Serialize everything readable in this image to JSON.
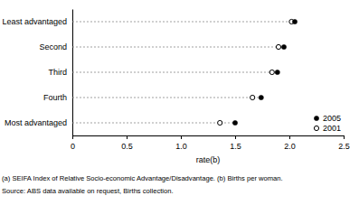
{
  "chart_data": {
    "type": "dot",
    "orientation": "horizontal",
    "categories": [
      "Least advantaged",
      "Second",
      "Third",
      "Fourth",
      "Most advantaged"
    ],
    "series": [
      {
        "name": "2005",
        "color": "#000000",
        "marker": "filled-circle",
        "values": [
          2.05,
          1.95,
          1.89,
          1.74,
          1.5
        ]
      },
      {
        "name": "2001",
        "color": "#000000",
        "marker": "open-circle",
        "values": [
          2.02,
          1.9,
          1.84,
          1.66,
          1.36
        ]
      }
    ],
    "x_label": "rate(b)",
    "xlim": [
      0,
      2.5
    ],
    "xticks": [
      0,
      0.5,
      {
        "value": 1,
        "label": "1.0"
      },
      1.5,
      {
        "value": 2,
        "label": "2.0"
      },
      2.5
    ],
    "legend": "lower right",
    "footnotes": [
      "(a) SEIFA Index of Relative Socio-economic Advantage/Disadvantage. (b) Births per woman.",
      "Source: ABS data available on request, Births collection."
    ]
  }
}
